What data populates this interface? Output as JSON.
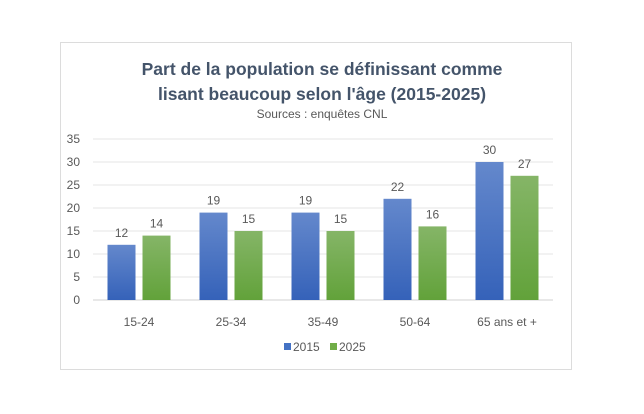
{
  "chart_data": {
    "type": "bar",
    "title": "Part de la population se définissant comme lisant beaucoup selon l'âge (2015-2025)",
    "title_lines": [
      "Part de la population se définissant comme",
      "lisant beaucoup selon l'âge (2015-2025)"
    ],
    "subtitle": "Sources : enquêtes CNL",
    "categories": [
      "15-24",
      "25-34",
      "35-49",
      "50-64",
      "65 ans et +"
    ],
    "series": [
      {
        "name": "2015",
        "values": [
          12,
          19,
          19,
          22,
          30
        ],
        "color": "#4472c4"
      },
      {
        "name": "2025",
        "values": [
          14,
          15,
          15,
          16,
          27
        ],
        "color": "#70ad47"
      }
    ],
    "ylim": [
      0,
      35
    ],
    "yticks": [
      0,
      5,
      10,
      15,
      20,
      25,
      30,
      35
    ],
    "grid": true,
    "legend": "bottom",
    "data_labels": true,
    "xlabel": "",
    "ylabel": ""
  }
}
